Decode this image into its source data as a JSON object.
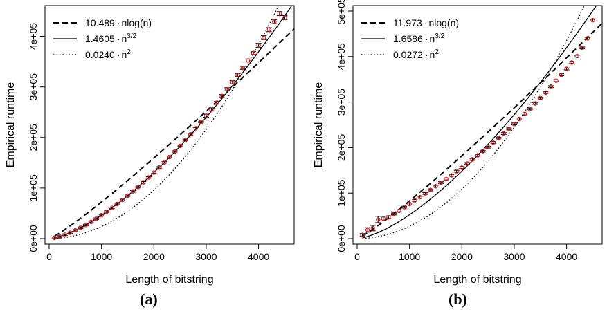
{
  "figure": {
    "panels": [
      {
        "label": "(a)"
      },
      {
        "label": "(b)"
      }
    ]
  },
  "chart_data": [
    {
      "type": "scatter",
      "panel": "(a)",
      "xlabel": "Length of bitstring",
      "ylabel": "Empirical runtime",
      "xlim": [
        0,
        4600
      ],
      "ylim": [
        0,
        450000
      ],
      "x_ticks": [
        0,
        1000,
        2000,
        3000,
        4000
      ],
      "y_ticks": [
        0,
        100000,
        200000,
        300000,
        400000
      ],
      "x_tick_labels": [
        "0",
        "1000",
        "2000",
        "3000",
        "4000"
      ],
      "y_tick_labels": [
        "0e+00",
        "1e+05",
        "2e+05",
        "3e+05",
        "4e+05"
      ],
      "legend_position": "top-left",
      "legend": [
        {
          "style": "dashed",
          "coef_text": "10.489",
          "model": "nlog(n)",
          "exp": ""
        },
        {
          "style": "solid",
          "coef_text": "1.4605",
          "model": "n",
          "exp": "3/2"
        },
        {
          "style": "dotted",
          "coef_text": "0.0240",
          "model": "n",
          "exp": "2"
        }
      ],
      "fits": [
        {
          "style": "dashed",
          "kind": "nlogn",
          "coef": 10.489
        },
        {
          "style": "solid",
          "kind": "pow",
          "p": 1.5,
          "coef": 1.4605
        },
        {
          "style": "dotted",
          "kind": "pow",
          "p": 2,
          "coef": 0.024
        }
      ],
      "point_color": "#e8141e",
      "series": [
        {
          "x": [
            100,
            200,
            300,
            400,
            500,
            600,
            700,
            800,
            900,
            1000,
            1100,
            1200,
            1300,
            1400,
            1500,
            1600,
            1700,
            1800,
            1900,
            2000,
            2100,
            2200,
            2300,
            2400,
            2500,
            2600,
            2700,
            2800,
            2900,
            3000,
            3100,
            3200,
            3300,
            3400,
            3500,
            3600,
            3700,
            3800,
            3900,
            4000,
            4100,
            4200,
            4300,
            4400,
            4500
          ],
          "y": [
            1500,
            4100,
            7600,
            11700,
            16300,
            21500,
            27000,
            33000,
            39400,
            46200,
            53300,
            60700,
            68400,
            76400,
            84800,
            93400,
            102300,
            111400,
            120900,
            130600,
            140700,
            150900,
            161500,
            172300,
            183400,
            194800,
            206400,
            218300,
            230500,
            243000,
            255700,
            268700,
            282000,
            295500,
            309300,
            323400,
            337700,
            352300,
            367100,
            382200,
            397600,
            413200,
            429200,
            445000,
            437000
          ],
          "err": [
            1500,
            1500,
            1500,
            1500,
            1500,
            1500,
            1500,
            1500,
            1500,
            1500,
            1500,
            1500,
            1500,
            1500,
            1500,
            1500,
            1500,
            1500,
            1500,
            1500,
            1500,
            1500,
            1500,
            1500,
            1500,
            1500,
            1500,
            1500,
            1500,
            3000,
            3000,
            3000,
            3000,
            3000,
            3000,
            3000,
            3000,
            3000,
            3000,
            4000,
            4000,
            4000,
            4000,
            4000,
            4000
          ]
        }
      ]
    },
    {
      "type": "scatter",
      "panel": "(b)",
      "xlabel": "Length of bitstring",
      "ylabel": "Empirical runtime",
      "xlim": [
        0,
        4600
      ],
      "ylim": [
        0,
        500000
      ],
      "x_ticks": [
        0,
        1000,
        2000,
        3000,
        4000
      ],
      "y_ticks": [
        0,
        100000,
        200000,
        300000,
        400000,
        500000
      ],
      "x_tick_labels": [
        "0",
        "1000",
        "2000",
        "3000",
        "4000"
      ],
      "y_tick_labels": [
        "0e+00",
        "1e+05",
        "2e+05",
        "3e+05",
        "4e+05",
        "5e+05"
      ],
      "legend_position": "top-left",
      "legend": [
        {
          "style": "dashed",
          "coef_text": "11.973",
          "model": "nlog(n)",
          "exp": ""
        },
        {
          "style": "solid",
          "coef_text": "1.6586",
          "model": "n",
          "exp": "3/2"
        },
        {
          "style": "dotted",
          "coef_text": "0.0272",
          "model": "n",
          "exp": "2"
        }
      ],
      "fits": [
        {
          "style": "dashed",
          "kind": "nlogn",
          "coef": 11.973
        },
        {
          "style": "solid",
          "kind": "pow",
          "p": 1.5,
          "coef": 1.6586
        },
        {
          "style": "dotted",
          "kind": "pow",
          "p": 2,
          "coef": 0.0272
        }
      ],
      "point_color": "#e8141e",
      "series": [
        {
          "x": [
            100,
            200,
            300,
            400,
            500,
            600,
            700,
            800,
            900,
            1000,
            1100,
            1200,
            1300,
            1400,
            1500,
            1600,
            1700,
            1800,
            1900,
            2000,
            2100,
            2200,
            2300,
            2400,
            2500,
            2600,
            2700,
            2800,
            2900,
            3000,
            3100,
            3200,
            3300,
            3400,
            3500,
            3600,
            3700,
            3800,
            3900,
            4000,
            4100,
            4200,
            4300,
            4400,
            4500
          ],
          "y": [
            8000,
            19000,
            23000,
            42000,
            44000,
            47000,
            54000,
            61000,
            69000,
            76000,
            84000,
            91000,
            99000,
            107000,
            115000,
            123000,
            131000,
            139000,
            148000,
            156000,
            165000,
            174000,
            183000,
            192000,
            201000,
            211000,
            221000,
            231000,
            241000,
            252000,
            263000,
            274000,
            285000,
            297000,
            309000,
            321000,
            334000,
            347000,
            360000,
            373000,
            387000,
            401000,
            419000,
            440000,
            480000
          ],
          "err": [
            3000,
            5000,
            6000,
            7000,
            5000,
            3000,
            2000,
            2000,
            2000,
            2000,
            2000,
            2000,
            2000,
            2000,
            2000,
            2000,
            2000,
            2000,
            2000,
            2000,
            2000,
            2000,
            2000,
            2000,
            2000,
            2000,
            2000,
            2000,
            2000,
            2000,
            2000,
            2000,
            2000,
            2000,
            2000,
            2000,
            2000,
            2000,
            2000,
            2000,
            2000,
            2000,
            2000,
            2000,
            2000
          ]
        }
      ]
    }
  ]
}
